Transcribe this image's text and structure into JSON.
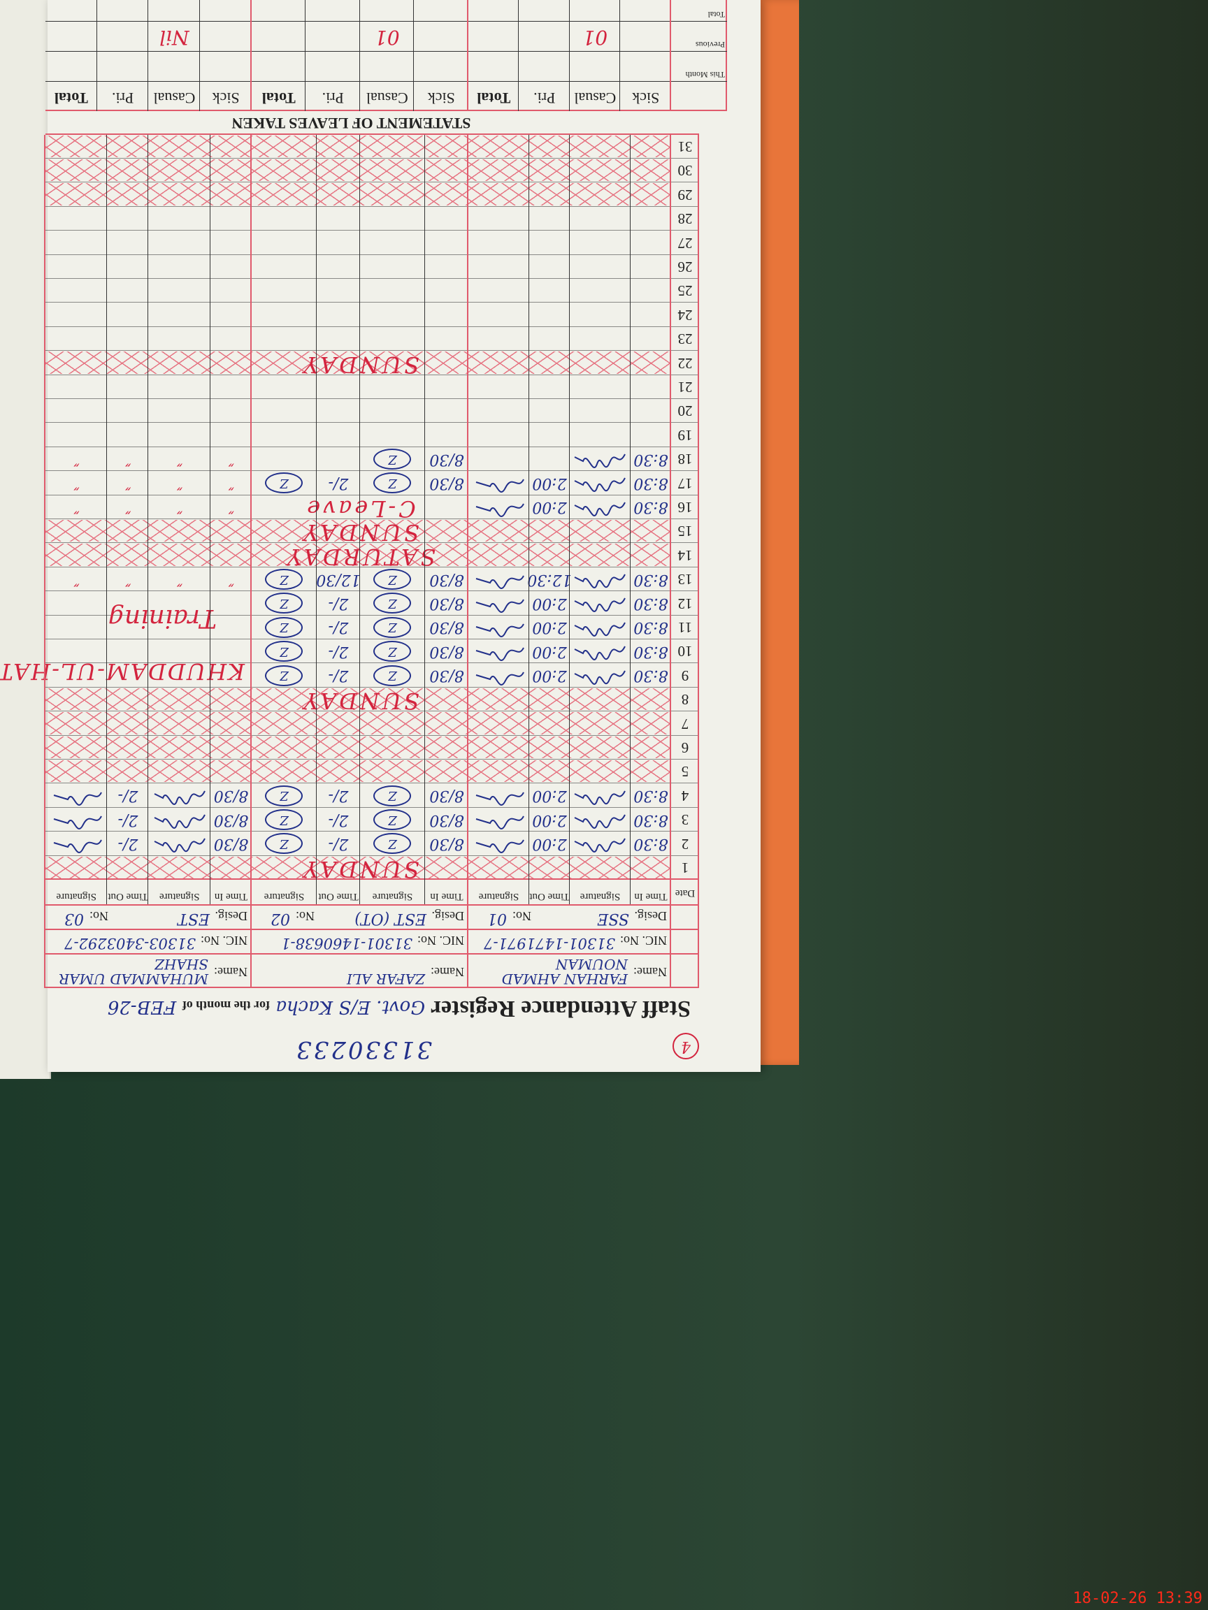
{
  "register": {
    "page_number": "4",
    "reference_number": "31330233",
    "title": "Staff Attendance Register",
    "school": "Govt. E/S Kacha",
    "month_label": "for the month of",
    "month": "FEB-26"
  },
  "labels": {
    "name": "Name:",
    "nic": "NIC. No:",
    "desig": "Desig.",
    "no": "No:",
    "date": "Date",
    "time_in": "Time In",
    "signature": "Signature",
    "time_out": "Time Out",
    "leaves_title": "STATEMENT OF LEAVES TAKEN",
    "leave_types": [
      "Sick",
      "Casual",
      "Pri.",
      "Total"
    ],
    "leave_rows": [
      "This Month",
      "Previous",
      "Total"
    ]
  },
  "staff": [
    {
      "name": "FARHAN AHMAD NOUMAN",
      "nic": "31301-1471971-7",
      "desig": "SSE",
      "no": "01",
      "leaves": {
        "previous_casual": "01"
      }
    },
    {
      "name": "ZAFAR ALI",
      "nic": "31301-1460638-1",
      "desig": "EST (OT)",
      "no": "02",
      "leaves": {
        "previous_casual": "01"
      }
    },
    {
      "name": "MUHAMMAD UMAR SHAHZ",
      "nic": "31303-3403292-7",
      "desig": "EST",
      "no": "03",
      "leaves": {
        "previous_casual": "Nil"
      }
    }
  ],
  "days": [
    {
      "date": "1",
      "holiday": true,
      "note": "SUNDAY"
    },
    {
      "date": "2",
      "entries": [
        {
          "in": "8:30",
          "out": "2:00",
          "signed": true
        },
        {
          "in": "8/30",
          "out": "2/-",
          "signed": true
        },
        {
          "in": "8/30",
          "out": "2/-",
          "signed": true
        }
      ]
    },
    {
      "date": "3",
      "entries": [
        {
          "in": "8:30",
          "out": "2:00",
          "signed": true
        },
        {
          "in": "8/30",
          "out": "2/-",
          "signed": true
        },
        {
          "in": "8/30",
          "out": "2/-",
          "signed": true
        }
      ]
    },
    {
      "date": "4",
      "entries": [
        {
          "in": "8:30",
          "out": "2:00",
          "signed": true
        },
        {
          "in": "8/30",
          "out": "2/-",
          "signed": true
        },
        {
          "in": "8/30",
          "out": "2/-",
          "signed": true
        }
      ]
    },
    {
      "date": "5",
      "holiday": true
    },
    {
      "date": "6",
      "holiday": true
    },
    {
      "date": "7",
      "holiday": true
    },
    {
      "date": "8",
      "holiday": true,
      "note": "SUNDAY"
    },
    {
      "date": "9",
      "entries": [
        {
          "in": "8:30",
          "out": "2:00",
          "signed": true
        },
        {
          "in": "8/30",
          "out": "2/-",
          "signed": true
        },
        {}
      ]
    },
    {
      "date": "10",
      "entries": [
        {
          "in": "8:30",
          "out": "2:00",
          "signed": true
        },
        {
          "in": "8/30",
          "out": "2/-",
          "signed": true
        },
        {}
      ]
    },
    {
      "date": "11",
      "entries": [
        {
          "in": "8:30",
          "out": "2:00",
          "signed": true
        },
        {
          "in": "8/30",
          "out": "2/-",
          "signed": true
        },
        {}
      ]
    },
    {
      "date": "12",
      "entries": [
        {
          "in": "8:30",
          "out": "2:00",
          "signed": true
        },
        {
          "in": "8/30",
          "out": "2/-",
          "signed": true
        },
        {}
      ]
    },
    {
      "date": "13",
      "entries": [
        {
          "in": "8:30",
          "out": "12:30",
          "signed": true
        },
        {
          "in": "8/30",
          "out": "12/30",
          "signed": true
        },
        {
          "ditto": "″"
        }
      ]
    },
    {
      "date": "14",
      "holiday": true,
      "note": "SATURDAY"
    },
    {
      "date": "15",
      "holiday": true,
      "note": "SUNDAY"
    },
    {
      "date": "16",
      "entries": [
        {
          "in": "8:30",
          "out": "2:00",
          "signed": true
        },
        {
          "note": "C-Leave"
        },
        {
          "ditto": "″"
        }
      ]
    },
    {
      "date": "17",
      "entries": [
        {
          "in": "8:30",
          "out": "2:00",
          "signed": true
        },
        {
          "in": "8/30",
          "out": "2/-",
          "signed": true
        },
        {
          "ditto": "″"
        }
      ]
    },
    {
      "date": "18",
      "entries": [
        {
          "in": "8:30",
          "signed": true
        },
        {
          "in": "8/30",
          "signed": true
        },
        {
          "ditto": "″"
        }
      ]
    },
    {
      "date": "19"
    },
    {
      "date": "20"
    },
    {
      "date": "21"
    },
    {
      "date": "22",
      "holiday": true,
      "note": "SUNDAY"
    },
    {
      "date": "23"
    },
    {
      "date": "24"
    },
    {
      "date": "25"
    },
    {
      "date": "26"
    },
    {
      "date": "27"
    },
    {
      "date": "28"
    },
    {
      "date": "29",
      "holiday": true
    },
    {
      "date": "30",
      "holiday": true
    },
    {
      "date": "31",
      "holiday": true
    }
  ],
  "umar_training_note": [
    "KHUDDAM-UL-HATAT",
    "Training"
  ],
  "camera_timestamp": "18-02-26 13:39",
  "colors": {
    "ink_red": "#d3243e",
    "ink_blue": "#22308a",
    "folder": "#e8753a",
    "ruling_red": "#e05a6c"
  }
}
